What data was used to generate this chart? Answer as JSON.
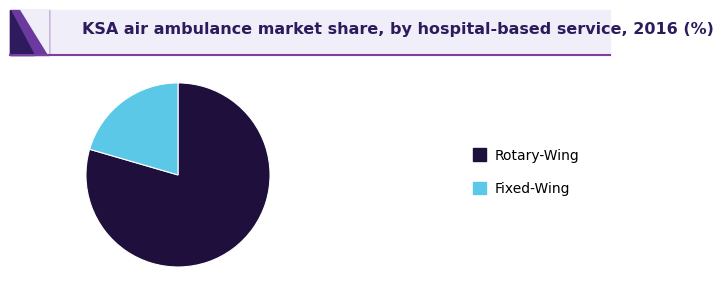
{
  "title": "KSA air ambulance market share, by hospital-based service, 2016 (%)",
  "slices": [
    79.5,
    20.5
  ],
  "labels": [
    "Rotary-Wing",
    "Fixed-Wing"
  ],
  "colors": [
    "#1e0f3c",
    "#5bc8e8"
  ],
  "startangle": 90,
  "legend_labels": [
    "Rotary-Wing",
    "Fixed-Wing"
  ],
  "background_color": "#ffffff",
  "title_fontsize": 11.5,
  "title_color": "#2d1b5e",
  "header_line_color": "#7b3f9e",
  "header_bg_color": "#f0eef8",
  "triangle_outer_color": "#6b3a9e",
  "triangle_inner_color": "#2d1b5e"
}
